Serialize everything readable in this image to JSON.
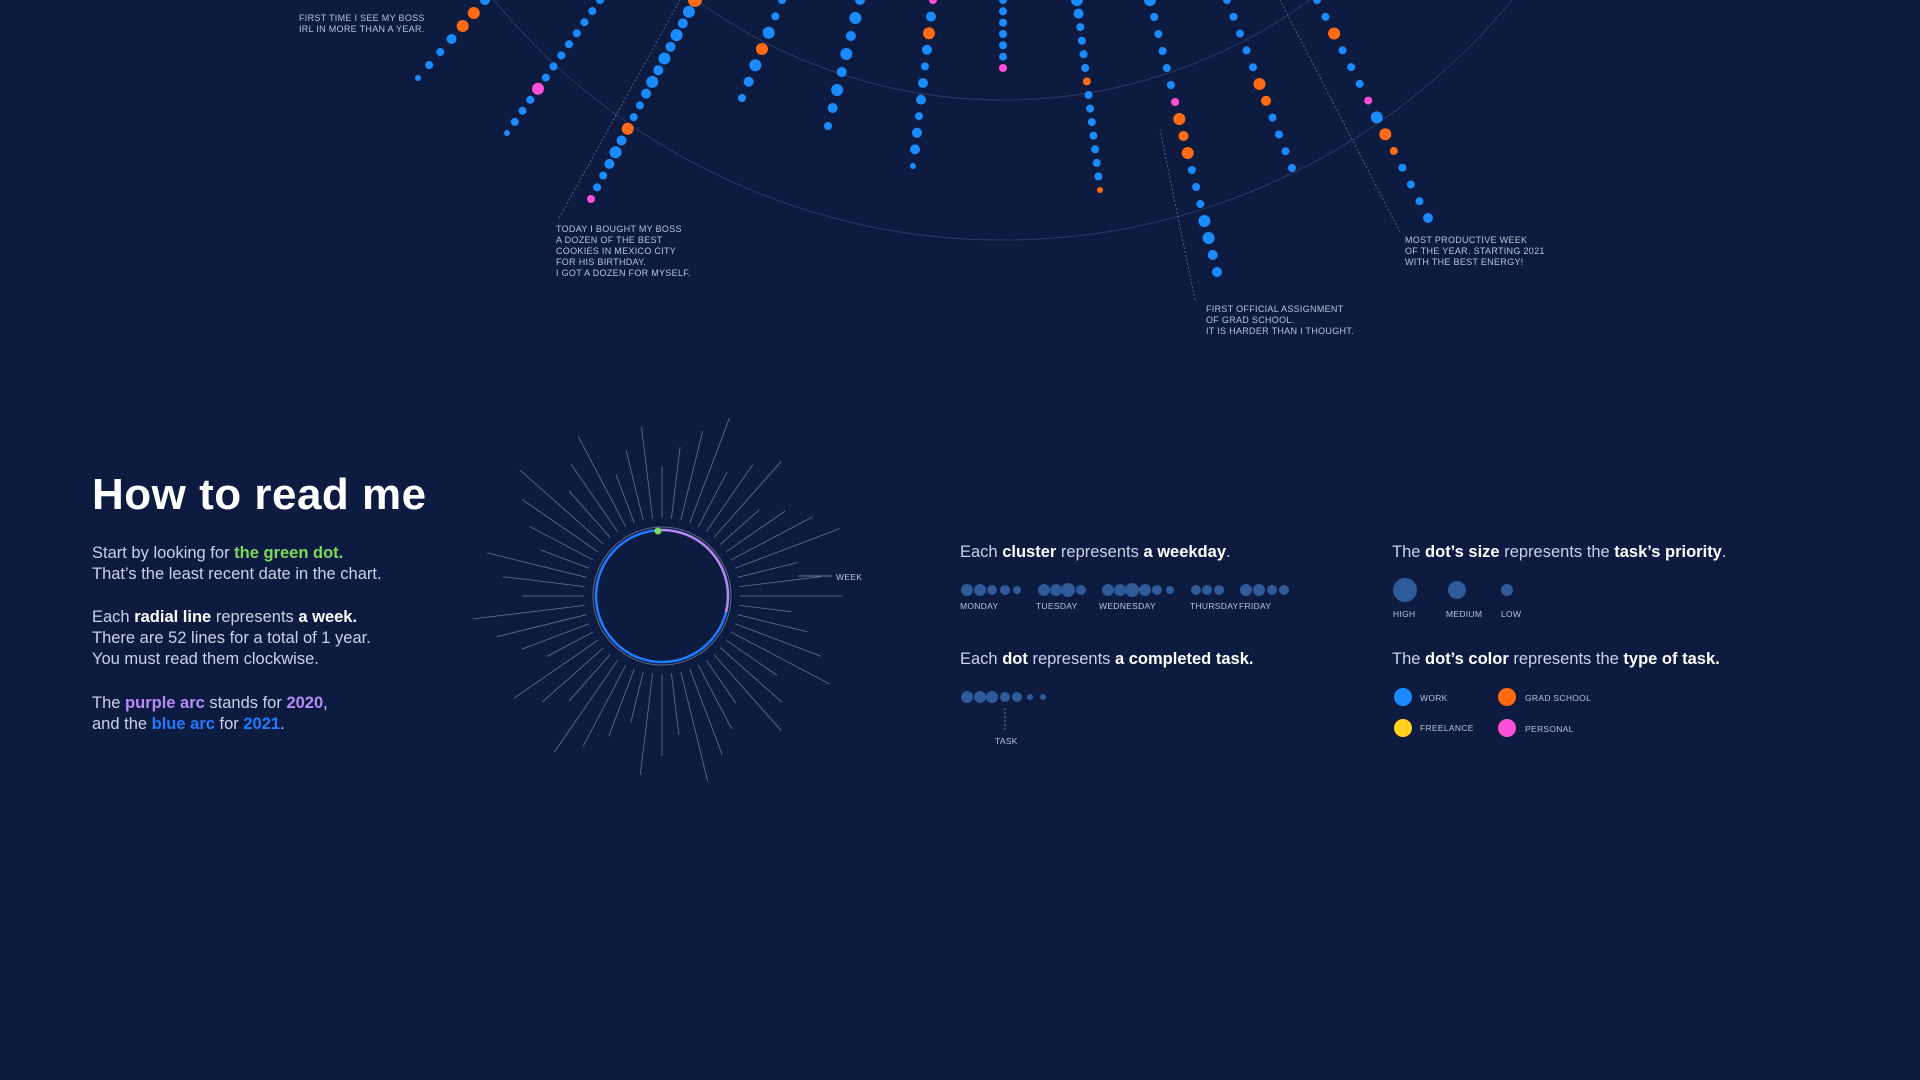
{
  "annotations": {
    "boss": "FIRST TIME I SEE MY BOSS\nIRL IN MORE THAN A YEAR.",
    "cookies": "TODAY I BOUGHT MY BOSS\nA DOZEN OF THE BEST\nCOOKIES IN MEXICO CITY\nFOR HIS BIRTHDAY.\nI GOT A DOZEN FOR MYSELF.",
    "grad": "FIRST OFFICIAL ASSIGNMENT\nOF GRAD SCHOOL.\nIT IS HARDER THAN I THOUGHT.",
    "productive": "MOST PRODUCTIVE WEEK\nOF THE YEAR. STARTING 2021\nWITH THE BEST ENERGY!"
  },
  "howto": {
    "title": "How to read me",
    "p1": {
      "a": "Start by looking for ",
      "b": "the green dot.",
      "c": "That’s the least recent date in the chart."
    },
    "p2": {
      "a": "Each ",
      "b": "radial line",
      "c": " represents ",
      "d": "a week.",
      "e": "There are 52 lines for a total of 1 year.",
      "f": "You must read them clockwise."
    },
    "p3": {
      "a": "The ",
      "b": "purple arc",
      "c": " stands for ",
      "d": "2020",
      "e": ",",
      "f": "and the ",
      "g": "blue arc",
      "h": " for ",
      "i": "2021",
      "j": "."
    },
    "week_label": "WEEK"
  },
  "legend": {
    "cluster": {
      "a": "Each ",
      "b": "cluster",
      "c": " represents ",
      "d": "a weekday",
      "e": "."
    },
    "weekdays": [
      "MONDAY",
      "TUESDAY",
      "WEDNESDAY",
      "THURSDAY",
      "FRIDAY"
    ],
    "dot": {
      "a": "Each ",
      "b": "dot",
      "c": " represents ",
      "d": "a completed task."
    },
    "task_label": "TASK",
    "size": {
      "a": "The ",
      "b": "dot’s size",
      "c": " represents the ",
      "d": "task’s priority",
      "e": "."
    },
    "priorities": [
      "HIGH",
      "MEDIUM",
      "LOW"
    ],
    "color": {
      "a": "The ",
      "b": "dot’s color",
      "c": " represents the ",
      "d": "type of task."
    },
    "types": [
      {
        "label": "WORK",
        "color": "#1a8cff"
      },
      {
        "label": "GRAD SCHOOL",
        "color": "#ff6a13"
      },
      {
        "label": "FREELANCE",
        "color": "#ffd21f"
      },
      {
        "label": "PERSONAL",
        "color": "#ff4fd8"
      }
    ]
  },
  "colors": {
    "background": "#0e1b40",
    "work": "#1a8cff",
    "grad_school": "#ff6a13",
    "freelance": "#ffd21f",
    "personal": "#ff4fd8",
    "start_dot": "#7ed957",
    "arc_2020": "#b58cf7",
    "arc_2021": "#1f7cff",
    "legend_dot": "#2f5b9a"
  }
}
